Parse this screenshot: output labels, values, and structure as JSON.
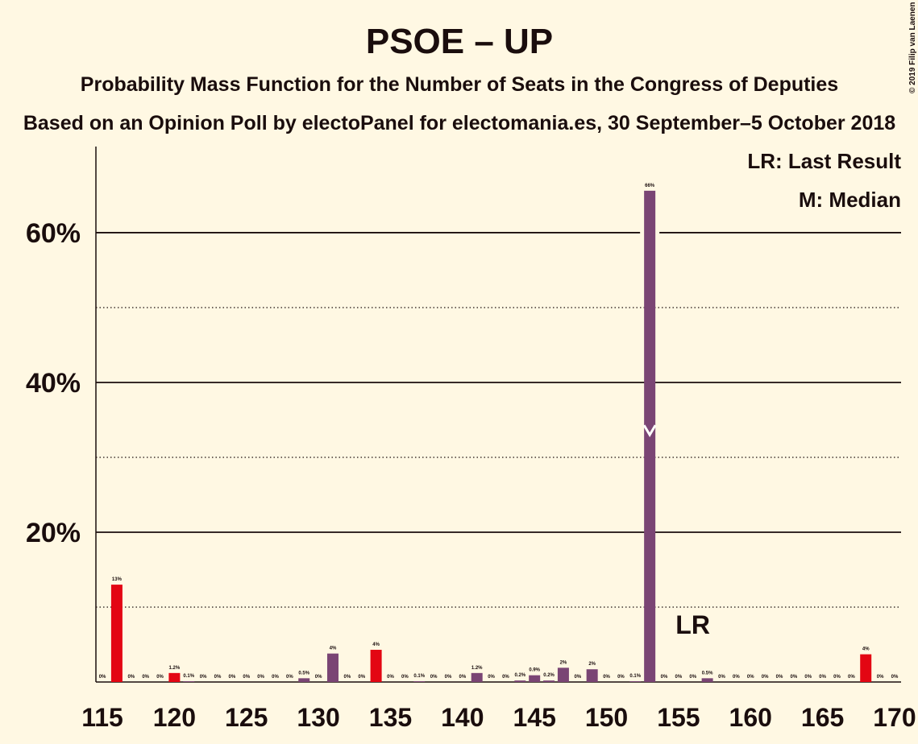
{
  "chart_data": {
    "type": "bar",
    "title": "PSOE – UP",
    "subtitle": "Probability Mass Function for the Number of Seats in the Congress of Deputies",
    "subtitle2": "Based on an Opinion Poll by electoPanel for electomania.es, 30 September–5 October 2018",
    "copyright": "© 2019 Filip van Laenen",
    "legend": [
      "LR: Last Result",
      "M: Median"
    ],
    "legend_position": "upper right",
    "x": [
      115,
      116,
      117,
      118,
      119,
      120,
      121,
      122,
      123,
      124,
      125,
      126,
      127,
      128,
      129,
      130,
      131,
      132,
      133,
      134,
      135,
      136,
      137,
      138,
      139,
      140,
      141,
      142,
      143,
      144,
      145,
      146,
      147,
      148,
      149,
      150,
      151,
      152,
      153,
      154,
      155,
      156,
      157,
      158,
      159,
      160,
      161,
      162,
      163,
      164,
      165,
      166,
      167,
      168,
      169,
      170
    ],
    "values": [
      0,
      13,
      0,
      0,
      0,
      1.2,
      0.1,
      0,
      0,
      0,
      0,
      0,
      0,
      0,
      0.5,
      0,
      3.8,
      0,
      0,
      4.3,
      0,
      0,
      0.1,
      0,
      0,
      0,
      1.2,
      0,
      0,
      0.2,
      0.9,
      0.2,
      1.9,
      0,
      1.7,
      0,
      0,
      0.1,
      65.6,
      0,
      0,
      0,
      0.5,
      0,
      0,
      0,
      0,
      0,
      0,
      0,
      0,
      0,
      0,
      3.7,
      0,
      0
    ],
    "value_labels": [
      "0%",
      "13%",
      "0%",
      "0%",
      "0%",
      "1.2%",
      "0.1%",
      "0%",
      "0%",
      "0%",
      "0%",
      "0%",
      "0%",
      "0%",
      "0.5%",
      "0%",
      "4%",
      "0%",
      "0%",
      "4%",
      "0%",
      "0%",
      "0.1%",
      "0%",
      "0%",
      "0%",
      "1.2%",
      "0%",
      "0%",
      "0.2%",
      "0.9%",
      "0.2%",
      "2%",
      "0%",
      "2%",
      "0%",
      "0%",
      "0.1%",
      "66%",
      "0%",
      "0%",
      "0%",
      "0.5%",
      "0%",
      "0%",
      "0%",
      "0%",
      "0%",
      "0%",
      "0%",
      "0%",
      "0%",
      "0%",
      "4%",
      "0%",
      "0%"
    ],
    "color": "#7a4574",
    "highlight_color": "#e30613",
    "highlighted": [
      116,
      120,
      134,
      168
    ],
    "median": 153,
    "last_result": 157,
    "last_result_label": "LR",
    "xlim": [
      114.55,
      170.45
    ],
    "xticks": [
      115,
      120,
      125,
      130,
      135,
      140,
      145,
      150,
      155,
      160,
      165,
      170
    ],
    "ylim": [
      0,
      71.5
    ],
    "yticks": [
      {
        "value": 20,
        "label": "20%"
      },
      {
        "value": 40,
        "label": "40%"
      },
      {
        "value": 60,
        "label": "60%"
      }
    ],
    "minor_yticks": [
      10,
      30,
      50
    ],
    "grid": true
  }
}
